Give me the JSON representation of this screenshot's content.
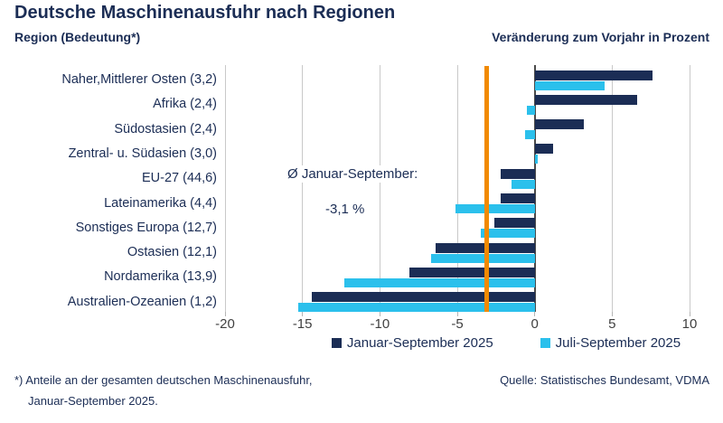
{
  "title": "Deutsche Maschinenausfuhr nach Regionen",
  "subtitle_left": "Region (Bedeutung*)",
  "subtitle_right": "Veränderung zum Vorjahr in Prozent",
  "annotation": {
    "line1": "Ø Januar-September:",
    "line2": "-3,1 %",
    "value": -3.1
  },
  "chart_data": {
    "type": "bar",
    "orientation": "horizontal",
    "title": "Deutsche Maschinenausfuhr nach Regionen",
    "xlabel": "Veränderung zum Vorjahr in Prozent",
    "ylabel": "Region (Bedeutung*)",
    "categories": [
      "Naher,Mittlerer Osten (3,2)",
      "Afrika (2,4)",
      "Südostasien (2,4)",
      "Zentral- u. Südasien (3,0)",
      "EU-27 (44,6)",
      "Lateinamerika (4,4)",
      "Sonstiges Europa (12,7)",
      "Ostasien (12,1)",
      "Nordamerika (13,9)",
      "Australien-Ozeanien (1,2)"
    ],
    "series": [
      {
        "name": "Januar-September 2025",
        "color": "#1B2D55",
        "values": [
          7.6,
          6.6,
          3.2,
          1.2,
          -2.2,
          -2.2,
          -2.6,
          -6.4,
          -8.1,
          -14.4
        ]
      },
      {
        "name": "Juli-September 2025",
        "color": "#2BC0EC",
        "values": [
          4.5,
          -0.5,
          -0.6,
          0.2,
          -1.5,
          -5.1,
          -3.5,
          -6.7,
          -12.3,
          -15.3
        ]
      }
    ],
    "xlim": [
      -20,
      10
    ],
    "xticks": [
      -20,
      -15,
      -10,
      -5,
      0,
      5,
      10
    ],
    "reference_line": {
      "value": -3.1,
      "color": "#F18A00",
      "label": "Ø Januar-September: -3,1 %"
    },
    "grid": true,
    "legend_position": "bottom"
  },
  "footnote_line1": "*) Anteile an der gesamten deutschen Maschinenausfuhr,",
  "footnote_line2": "Januar-September 2025.",
  "source": "Quelle: Statistisches Bundesamt, VDMA",
  "colors": {
    "navy": "#1B2D55",
    "cyan": "#2BC0EC",
    "orange": "#F18A00",
    "gridline": "#C9C9C9",
    "zero_line": "#4a4a4a",
    "tick_text": "#404040",
    "background": "#FFFFFF"
  }
}
